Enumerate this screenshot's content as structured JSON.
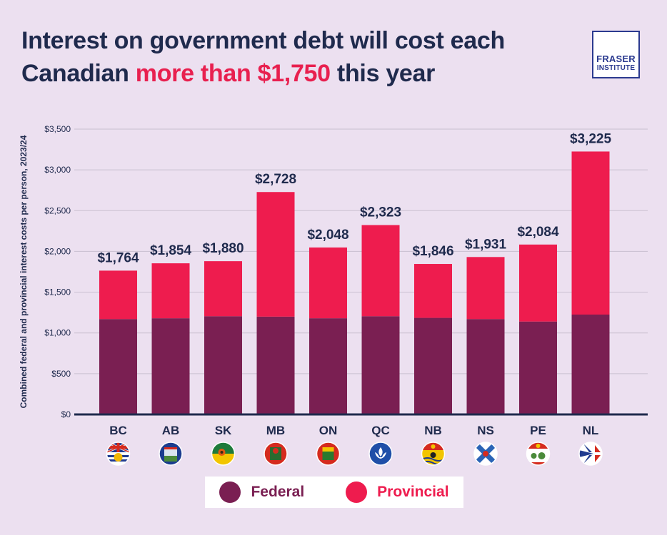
{
  "title": {
    "line1": "Interest on government debt will cost each",
    "line2_pre": "Canadian ",
    "line2_highlight": "more than $1,750",
    "line2_post": " this year"
  },
  "logo": {
    "line1": "FRASER",
    "line2": "INSTITUTE"
  },
  "colors": {
    "federal": "#7a1f52",
    "provincial": "#ee1c4e",
    "title": "#1f2a4d",
    "highlight": "#e8204f",
    "axis": "#1f2a4d",
    "grid": "#c9bfd0",
    "background": "#ece0f0"
  },
  "chart_data": {
    "type": "bar",
    "stacked": true,
    "title": "Interest on government debt will cost each Canadian more than $1,750 this year",
    "xlabel": "",
    "ylabel": "Combined federal and provincial interest costs per person, 2023/24",
    "ylim": [
      0,
      3500
    ],
    "yticks": [
      0,
      500,
      1000,
      1500,
      2000,
      2500,
      3000,
      3500
    ],
    "ytick_labels": [
      "$0",
      "$500",
      "$1,000",
      "$1,500",
      "$2,000",
      "$2,500",
      "$3,000",
      "$3,500"
    ],
    "grid": true,
    "categories": [
      "BC",
      "AB",
      "SK",
      "MB",
      "ON",
      "QC",
      "NB",
      "NS",
      "PE",
      "NL"
    ],
    "series": [
      {
        "name": "Federal",
        "values": [
          1170,
          1180,
          1205,
          1200,
          1180,
          1205,
          1185,
          1170,
          1140,
          1225
        ]
      },
      {
        "name": "Provincial",
        "values": [
          594,
          674,
          675,
          1528,
          868,
          1118,
          661,
          761,
          944,
          2000
        ]
      }
    ],
    "totals": [
      1764,
      1854,
      1880,
      2728,
      2048,
      2323,
      1846,
      1931,
      2084,
      3225
    ],
    "total_labels": [
      "$1,764",
      "$1,854",
      "$1,880",
      "$2,728",
      "$2,048",
      "$2,323",
      "$1,846",
      "$1,931",
      "$2,084",
      "$3,225"
    ],
    "flag_icons": [
      "bc-flag-icon",
      "ab-flag-icon",
      "sk-flag-icon",
      "mb-flag-icon",
      "on-flag-icon",
      "qc-flag-icon",
      "nb-flag-icon",
      "ns-flag-icon",
      "pe-flag-icon",
      "nl-flag-icon"
    ],
    "legend": [
      "Federal",
      "Provincial"
    ],
    "legend_position": "bottom"
  }
}
